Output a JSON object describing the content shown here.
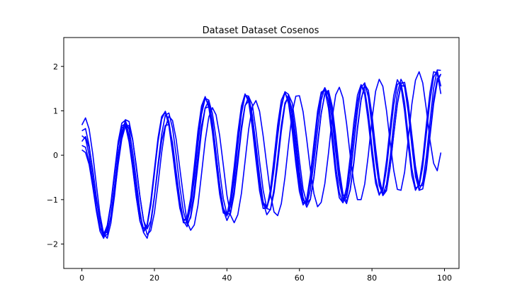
{
  "chart_data": {
    "type": "line",
    "title": "Dataset Dataset Cosenos",
    "xlabel": "",
    "ylabel": "",
    "xlim": [
      -5,
      104
    ],
    "ylim": [
      -2.55,
      2.65
    ],
    "xticks": [
      0,
      20,
      40,
      60,
      80,
      100
    ],
    "yticks": [
      -2,
      -1,
      0,
      1,
      2
    ],
    "xtick_labels": [
      "0",
      "20",
      "40",
      "60",
      "80",
      "100"
    ],
    "ytick_labels": [
      "−2",
      "−1",
      "0",
      "1",
      "2"
    ],
    "grid": false,
    "legend": "none",
    "line_color": "#0000ff",
    "x": [
      0,
      1,
      2,
      3,
      4,
      5,
      6,
      7,
      8,
      9,
      10,
      11,
      12,
      13,
      14,
      15,
      16,
      17,
      18,
      19,
      20,
      21,
      22,
      23,
      24,
      25,
      26,
      27,
      28,
      29,
      30,
      31,
      32,
      33,
      34,
      35,
      36,
      37,
      38,
      39,
      40,
      41,
      42,
      43,
      44,
      45,
      46,
      47,
      48,
      49,
      50,
      51,
      52,
      53,
      54,
      55,
      56,
      57,
      58,
      59,
      60,
      61,
      62,
      63,
      64,
      65,
      66,
      67,
      68,
      69,
      70,
      71,
      72,
      73,
      74,
      75,
      76,
      77,
      78,
      79,
      80,
      81,
      82,
      83,
      84,
      85,
      86,
      87,
      88,
      89,
      90,
      91,
      92,
      93,
      94,
      95,
      96,
      97,
      98,
      99
    ],
    "series": [
      {
        "values": [
          0.55,
          0.6,
          0.22,
          -0.37,
          -1.01,
          -1.49,
          -1.74,
          -1.74,
          -1.4,
          -0.86,
          -0.21,
          0.36,
          0.66,
          0.67,
          0.34,
          -0.23,
          -0.92,
          -1.46,
          -1.79,
          -1.7,
          -1.3,
          -0.65,
          0.06,
          0.62,
          0.88,
          0.78,
          0.36,
          -0.29,
          -0.93,
          -1.5,
          -1.69,
          -1.57,
          -1.13,
          -0.42,
          0.32,
          0.86,
          1.07,
          0.91,
          0.44,
          -0.22,
          -0.9,
          -1.35,
          -1.52,
          -1.34,
          -0.86,
          -0.14,
          0.59,
          1.09,
          1.23,
          0.99,
          0.43,
          -0.23,
          -0.87,
          -1.28,
          -1.36,
          -1.09,
          -0.5,
          0.25,
          0.95,
          1.33,
          1.34,
          0.98,
          0.36,
          -0.32,
          -0.87,
          -1.16,
          -1.06,
          -0.64,
          0.04,
          0.82,
          1.36,
          1.53,
          1.29,
          0.71,
          0.0,
          -0.62,
          -1.0,
          -1.0,
          -0.65,
          0.01,
          0.8,
          1.44,
          1.71,
          1.55,
          1.01,
          0.31,
          -0.34,
          -0.77,
          -0.79,
          -0.38,
          0.36,
          1.15,
          1.69,
          1.88,
          1.63,
          1.03,
          0.34,
          -0.18,
          -0.35,
          0.06
        ]
      },
      {
        "values": [
          0.31,
          0.42,
          0.17,
          -0.32,
          -0.95,
          -1.49,
          -1.84,
          -1.78,
          -1.36,
          -0.7,
          0.01,
          0.52,
          0.76,
          0.59,
          0.08,
          -0.57,
          -1.25,
          -1.74,
          -1.87,
          -1.55,
          -0.95,
          -0.27,
          0.32,
          0.67,
          0.69,
          0.28,
          -0.37,
          -1.0,
          -1.48,
          -1.61,
          -1.37,
          -0.79,
          -0.01,
          0.66,
          1.06,
          1.09,
          0.7,
          0.01,
          -0.67,
          -1.23,
          -1.47,
          -1.29,
          -0.78,
          -0.06,
          0.65,
          1.12,
          1.22,
          0.88,
          0.24,
          -0.47,
          -1.06,
          -1.34,
          -1.22,
          -0.75,
          -0.05,
          0.68,
          1.18,
          1.32,
          1.01,
          0.39,
          -0.37,
          -0.95,
          -1.17,
          -1.0,
          -0.48,
          0.26,
          0.95,
          1.37,
          1.42,
          1.0,
          0.28,
          -0.44,
          -0.95,
          -1.09,
          -0.77,
          -0.14,
          0.62,
          1.27,
          1.55,
          1.37,
          0.79,
          0.05,
          -0.59,
          -0.91,
          -0.8,
          -0.27,
          0.47,
          1.15,
          1.57,
          1.55,
          1.06,
          0.33,
          -0.38,
          -0.79,
          -0.76,
          -0.32,
          0.42,
          1.15,
          1.64,
          1.83
        ]
      },
      {
        "values": [
          0.12,
          0.06,
          -0.21,
          -0.71,
          -1.26,
          -1.71,
          -1.87,
          -1.66,
          -1.13,
          -0.45,
          0.22,
          0.62,
          0.67,
          0.3,
          -0.29,
          -0.95,
          -1.47,
          -1.73,
          -1.6,
          -1.08,
          -0.37,
          0.35,
          0.85,
          0.96,
          0.71,
          0.15,
          -0.51,
          -1.14,
          -1.52,
          -1.52,
          -1.17,
          -0.53,
          0.25,
          0.92,
          1.28,
          1.24,
          0.75,
          0.04,
          -0.7,
          -1.19,
          -1.37,
          -1.14,
          -0.56,
          0.23,
          0.93,
          1.35,
          1.33,
          0.9,
          0.16,
          -0.58,
          -1.06,
          -1.17,
          -0.91,
          -0.31,
          0.43,
          1.07,
          1.43,
          1.37,
          0.9,
          0.2,
          -0.55,
          -1.0,
          -1.11,
          -0.78,
          -0.14,
          0.59,
          1.24,
          1.52,
          1.35,
          0.82,
          0.07,
          -0.6,
          -1.0,
          -0.95,
          -0.48,
          0.25,
          0.99,
          1.52,
          1.63,
          1.31,
          0.65,
          -0.11,
          -0.68,
          -0.89,
          -0.66,
          -0.06,
          0.73,
          1.4,
          1.71,
          1.54,
          0.97,
          0.21,
          -0.48,
          -0.78,
          -0.6,
          -0.03,
          0.76,
          1.51,
          1.92,
          1.91
        ]
      },
      {
        "values": [
          0.68,
          0.84,
          0.59,
          0.03,
          -0.67,
          -1.34,
          -1.77,
          -1.87,
          -1.53,
          -0.92,
          -0.16,
          0.42,
          0.8,
          0.76,
          0.36,
          -0.27,
          -0.93,
          -1.47,
          -1.66,
          -1.48,
          -0.92,
          -0.2,
          0.47,
          0.9,
          0.95,
          0.61,
          0.0,
          -0.7,
          -1.27,
          -1.55,
          -1.41,
          -0.93,
          -0.21,
          0.54,
          1.06,
          1.23,
          0.94,
          0.38,
          -0.36,
          -0.98,
          -1.33,
          -1.31,
          -0.88,
          -0.19,
          0.55,
          1.11,
          1.32,
          1.14,
          0.56,
          -0.14,
          -0.79,
          -1.2,
          -1.23,
          -0.84,
          -0.2,
          0.54,
          1.13,
          1.36,
          1.18,
          0.62,
          -0.12,
          -0.76,
          -1.08,
          -0.99,
          -0.5,
          0.21,
          0.93,
          1.39,
          1.46,
          1.12,
          0.44,
          -0.32,
          -0.87,
          -1.04,
          -0.79,
          -0.18,
          0.58,
          1.24,
          1.59,
          1.46,
          0.91,
          0.16,
          -0.51,
          -0.86,
          -0.77,
          -0.28,
          0.47,
          1.16,
          1.62,
          1.64,
          1.17,
          0.46,
          -0.25,
          -0.69,
          -0.68,
          -0.24,
          0.5,
          1.25,
          1.72,
          1.82
        ]
      },
      {
        "values": [
          0.44,
          0.37,
          0.01,
          -0.57,
          -1.19,
          -1.63,
          -1.82,
          -1.61,
          -1.11,
          -0.43,
          0.23,
          0.66,
          0.71,
          0.35,
          -0.26,
          -0.93,
          -1.48,
          -1.71,
          -1.56,
          -1.03,
          -0.32,
          0.39,
          0.87,
          0.98,
          0.66,
          0.06,
          -0.61,
          -1.19,
          -1.49,
          -1.41,
          -0.97,
          -0.24,
          0.54,
          1.11,
          1.32,
          1.08,
          0.52,
          -0.2,
          -0.88,
          -1.3,
          -1.34,
          -0.95,
          -0.26,
          0.5,
          1.11,
          1.38,
          1.2,
          0.62,
          -0.11,
          -0.8,
          -1.2,
          -1.19,
          -0.77,
          -0.06,
          0.69,
          1.24,
          1.42,
          1.16,
          0.56,
          -0.19,
          -0.82,
          -1.12,
          -0.99,
          -0.46,
          0.28,
          0.99,
          1.42,
          1.47,
          1.06,
          0.33,
          -0.44,
          -0.96,
          -1.07,
          -0.72,
          -0.04,
          0.74,
          1.35,
          1.59,
          1.36,
          0.75,
          0.0,
          -0.63,
          -0.9,
          -0.72,
          -0.13,
          0.64,
          1.34,
          1.7,
          1.55,
          0.99,
          0.23,
          -0.46,
          -0.79,
          -0.64,
          -0.09,
          0.69,
          1.42,
          1.88,
          1.85,
          1.38
        ]
      },
      {
        "values": [
          0.22,
          0.18,
          -0.15,
          -0.64,
          -1.22,
          -1.64,
          -1.79,
          -1.58,
          -1.08,
          -0.38,
          0.3,
          0.72,
          0.79,
          0.44,
          -0.12,
          -0.78,
          -1.35,
          -1.65,
          -1.58,
          -1.13,
          -0.42,
          0.3,
          0.81,
          0.99,
          0.76,
          0.22,
          -0.47,
          -1.07,
          -1.44,
          -1.46,
          -1.06,
          -0.38,
          0.39,
          1.02,
          1.29,
          1.14,
          0.63,
          -0.08,
          -0.75,
          -1.22,
          -1.34,
          -1.03,
          -0.4,
          0.35,
          1.0,
          1.36,
          1.27,
          0.78,
          0.05,
          -0.65,
          -1.11,
          -1.2,
          -0.87,
          -0.23,
          0.52,
          1.13,
          1.41,
          1.24,
          0.72,
          -0.03,
          -0.69,
          -1.07,
          -1.04,
          -0.6,
          0.1,
          0.85,
          1.36,
          1.52,
          1.21,
          0.54,
          -0.24,
          -0.84,
          -1.07,
          -0.85,
          -0.25,
          0.51,
          1.19,
          1.56,
          1.47,
          0.95,
          0.19,
          -0.5,
          -0.88,
          -0.8,
          -0.32,
          0.42,
          1.13,
          1.6,
          1.63,
          1.18,
          0.43,
          -0.3,
          -0.74,
          -0.7,
          -0.26,
          0.48,
          1.23,
          1.76,
          1.9,
          1.55
        ]
      }
    ]
  }
}
